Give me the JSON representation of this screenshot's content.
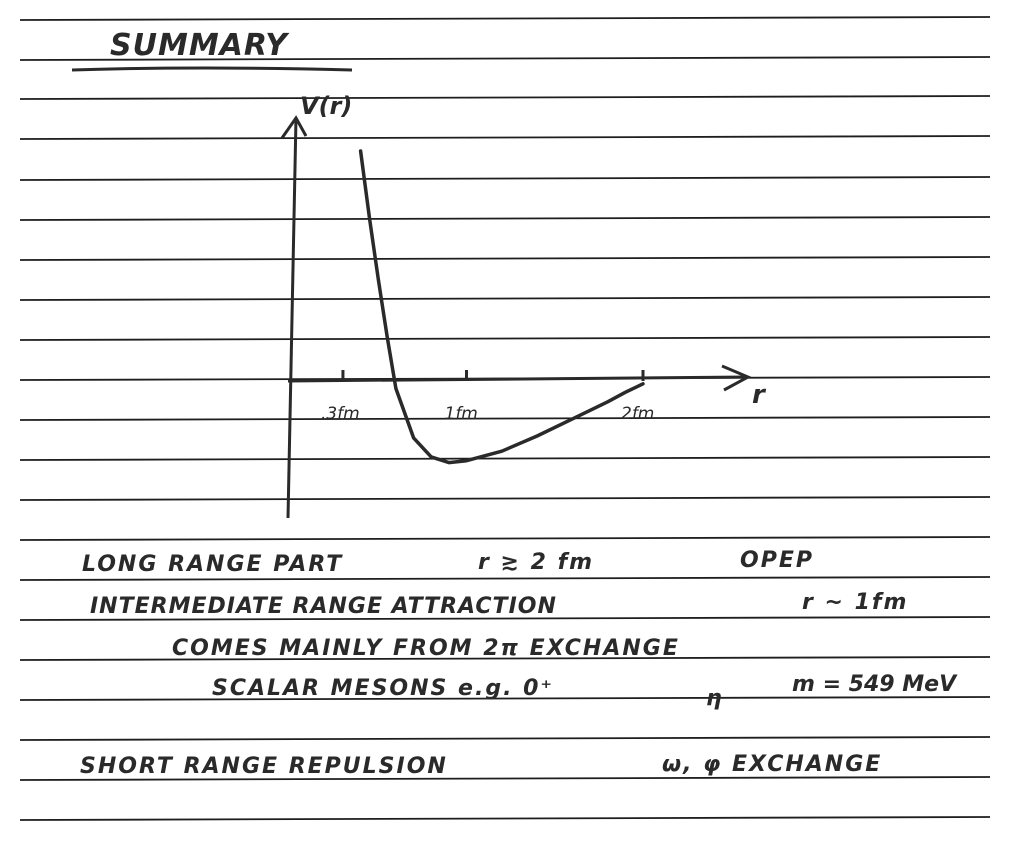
{
  "page": {
    "title": "SUMMARY",
    "colors": {
      "ink": "#2a2a2a",
      "rule": "#1e1e1e",
      "paper": "#ffffff"
    }
  },
  "chart_data": {
    "type": "line",
    "ylabel": "V(r)",
    "xlabel": "r",
    "tick_labels": [
      ".3fm",
      "1fm",
      "2fm"
    ],
    "tick_values": [
      0.3,
      1,
      2
    ],
    "xlim": [
      0,
      2.2
    ],
    "ylim": [
      -1,
      2.5
    ],
    "series": [
      {
        "x": [
          0.4,
          0.45,
          0.5,
          0.55,
          0.6,
          0.7,
          0.8,
          0.9,
          1.0,
          1.2,
          1.4,
          1.6,
          1.8,
          1.9,
          2.0
        ],
        "y": [
          2.4,
          1.7,
          1.05,
          0.45,
          -0.1,
          -0.62,
          -0.82,
          -0.88,
          -0.86,
          -0.76,
          -0.6,
          -0.42,
          -0.24,
          -0.14,
          -0.05
        ]
      }
    ]
  },
  "notes": {
    "line1_a": "LONG RANGE PART",
    "line1_b": "r ≳ 2 fm",
    "line1_c": "OPEP",
    "line2_a": "INTERMEDIATE RANGE ATTRACTION",
    "line2_b": "r ~ 1fm",
    "line3": "COMES MAINLY FROM 2π EXCHANGE",
    "line4_a": "SCALAR MESONS e.g. 0⁺",
    "line4_b": "η",
    "line4_c": "m = 549 MeV",
    "line5_a": "SHORT RANGE REPULSION",
    "line5_b": "ω, φ EXCHANGE"
  }
}
